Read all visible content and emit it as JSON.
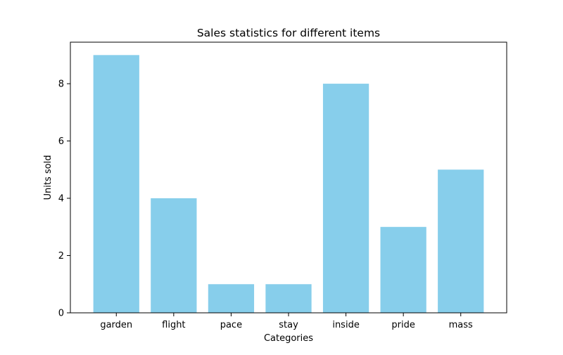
{
  "chart_data": {
    "type": "bar",
    "title": "Sales statistics for different items",
    "xlabel": "Categories",
    "ylabel": "Units sold",
    "categories": [
      "garden",
      "flight",
      "pace",
      "stay",
      "inside",
      "pride",
      "mass"
    ],
    "values": [
      9,
      4,
      1,
      1,
      8,
      3,
      5
    ],
    "ylim": [
      0,
      9.45
    ],
    "yticks": [
      0,
      2,
      4,
      6,
      8
    ],
    "bar_color": "#87ceeb",
    "grid": false,
    "legend": "none"
  }
}
